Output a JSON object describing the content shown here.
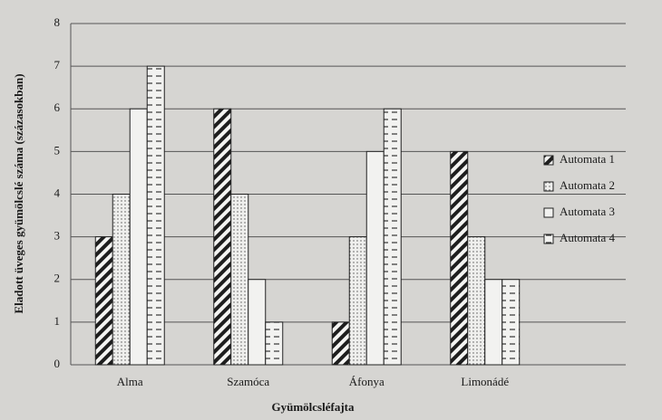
{
  "chart_data": {
    "type": "bar",
    "x_label": "Gyümölcsléfajta",
    "y_label": "Eladott üveges gyümölcslé száma (százasokban)",
    "categories": [
      "Alma",
      "Szamóca",
      "Áfonya",
      "Limonádé"
    ],
    "series": [
      {
        "name": "Automata 1",
        "pattern": "diagonal",
        "values": [
          3,
          6,
          1,
          5
        ]
      },
      {
        "name": "Automata 2",
        "pattern": "dots",
        "values": [
          4,
          4,
          3,
          3
        ]
      },
      {
        "name": "Automata 3",
        "pattern": "plain",
        "values": [
          6,
          2,
          5,
          2
        ]
      },
      {
        "name": "Automata 4",
        "pattern": "dashes",
        "values": [
          7,
          1,
          6,
          2
        ]
      }
    ],
    "ylim": [
      0,
      8
    ],
    "yticks": [
      0,
      1,
      2,
      3,
      4,
      5,
      6,
      7,
      8
    ],
    "grid": true,
    "legend": "right"
  }
}
